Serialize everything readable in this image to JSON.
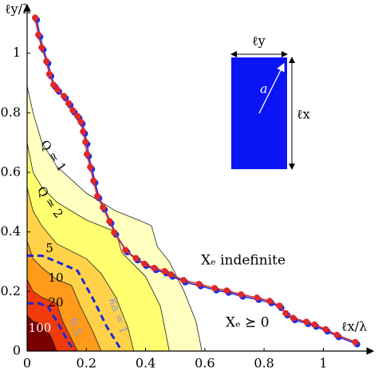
{
  "chart_data": {
    "type": "contour",
    "xlabel": "ℓx/λ",
    "ylabel": "ℓy/λ",
    "xlim": [
      0,
      1.12
    ],
    "ylim": [
      0,
      1.125
    ],
    "xticks": [
      0,
      0.2,
      0.4,
      0.6,
      0.8,
      1
    ],
    "yticks": [
      0,
      0.2,
      0.4,
      0.6,
      0.8,
      1
    ],
    "regions": [
      {
        "label": "Q ≃ 1",
        "color": "#ffffc0",
        "x": [
          0,
          0.02,
          0.05,
          0.1,
          0.2,
          0.3,
          0.4,
          0.42,
          0.44,
          0.48,
          0.53,
          0.57,
          0.59
        ],
        "y": [
          0.89,
          0.8,
          0.7,
          0.62,
          0.53,
          0.47,
          0.43,
          0.42,
          0.35,
          0.3,
          0.2,
          0.1,
          0
        ]
      },
      {
        "label": "Q ≃ 2",
        "color": "#ffff70",
        "x": [
          0,
          0.02,
          0.05,
          0.1,
          0.2,
          0.3,
          0.32,
          0.4,
          0.45,
          0.48
        ],
        "y": [
          0.7,
          0.6,
          0.55,
          0.5,
          0.44,
          0.4,
          0.33,
          0.25,
          0.15,
          0
        ]
      },
      {
        "label": "5",
        "color": "#ffd24a",
        "x": [
          0,
          0.02,
          0.05,
          0.1,
          0.2,
          0.25,
          0.3,
          0.34,
          0.36
        ],
        "y": [
          0.55,
          0.47,
          0.42,
          0.36,
          0.31,
          0.26,
          0.18,
          0.08,
          0
        ]
      },
      {
        "label": "10",
        "color": "#ff9a1a",
        "x": [
          0,
          0.02,
          0.05,
          0.1,
          0.15,
          0.18,
          0.22,
          0.25
        ],
        "y": [
          0.37,
          0.31,
          0.28,
          0.24,
          0.22,
          0.15,
          0.07,
          0
        ]
      },
      {
        "label": "20",
        "color": "#f03a0a",
        "x": [
          0,
          0.02,
          0.05,
          0.1,
          0.12,
          0.15,
          0.17
        ],
        "y": [
          0.24,
          0.2,
          0.18,
          0.16,
          0.1,
          0.04,
          0
        ]
      },
      {
        "label": "100",
        "color": "#7a0000",
        "x": [
          0,
          0.02,
          0.05,
          0.08,
          0.1
        ],
        "y": [
          0.12,
          0.1,
          0.09,
          0.05,
          0
        ]
      }
    ],
    "dashed_curves": [
      {
        "label": "ka = 1",
        "color": "#1a2ad0",
        "x": [
          0,
          0.05,
          0.1,
          0.17,
          0.22,
          0.27,
          0.32
        ],
        "y": [
          0.32,
          0.32,
          0.3,
          0.27,
          0.18,
          0.08,
          0
        ]
      },
      {
        "label": "0.5",
        "color": "#1a2ad0",
        "x": [
          0,
          0.04,
          0.07,
          0.1,
          0.14,
          0.16
        ],
        "y": [
          0.16,
          0.16,
          0.15,
          0.1,
          0.03,
          0
        ]
      }
    ],
    "series": [
      {
        "color": "#2030e0",
        "x": [
          0.033,
          0.044,
          0.055,
          0.071,
          0.081,
          0.095,
          0.108,
          0.13,
          0.146,
          0.16,
          0.176,
          0.187,
          0.195,
          0.203,
          0.208,
          0.219,
          0.23,
          0.243,
          0.262,
          0.284,
          0.3,
          0.338,
          0.373,
          0.402,
          0.435,
          0.47,
          0.491,
          0.534,
          0.586,
          0.639,
          0.68,
          0.728,
          0.782,
          0.825,
          0.858,
          0.879,
          0.904,
          0.949,
          0.976,
          1.014,
          1.052,
          1.114
        ],
        "values": [
          1.112,
          1.055,
          1.012,
          0.966,
          0.923,
          0.887,
          0.871,
          0.849,
          0.825,
          0.801,
          0.782,
          0.763,
          0.73,
          0.695,
          0.654,
          0.611,
          0.565,
          0.513,
          0.475,
          0.429,
          0.391,
          0.332,
          0.305,
          0.286,
          0.272,
          0.261,
          0.25,
          0.231,
          0.218,
          0.204,
          0.196,
          0.183,
          0.172,
          0.161,
          0.145,
          0.12,
          0.104,
          0.091,
          0.082,
          0.066,
          0.047,
          0.023
        ]
      },
      {
        "color": "#e02828",
        "x": [
          0.027,
          0.038,
          0.049,
          0.065,
          0.075,
          0.089,
          0.102,
          0.124,
          0.14,
          0.154,
          0.17,
          0.181,
          0.189,
          0.197,
          0.202,
          0.213,
          0.224,
          0.237,
          0.256,
          0.278,
          0.294,
          0.332,
          0.367,
          0.396,
          0.429,
          0.464,
          0.485,
          0.528,
          0.58,
          0.633,
          0.674,
          0.722,
          0.776,
          0.819,
          0.852,
          0.873,
          0.898,
          0.943,
          0.97,
          1.008,
          1.046,
          1.108
        ],
        "values": [
          1.119,
          1.062,
          1.019,
          0.973,
          0.93,
          0.894,
          0.878,
          0.856,
          0.832,
          0.808,
          0.789,
          0.77,
          0.737,
          0.702,
          0.661,
          0.618,
          0.572,
          0.52,
          0.482,
          0.436,
          0.398,
          0.339,
          0.312,
          0.293,
          0.279,
          0.268,
          0.257,
          0.238,
          0.225,
          0.211,
          0.203,
          0.19,
          0.179,
          0.168,
          0.152,
          0.127,
          0.111,
          0.098,
          0.089,
          0.073,
          0.054,
          0.03
        ]
      }
    ],
    "annotations": [
      "Xₑ indefinite",
      "Xₑ ⪰ 0"
    ],
    "inset": {
      "width_label": "ℓy",
      "height_label": "ℓx",
      "radius_label": "a",
      "color": "#0a14f5"
    }
  }
}
